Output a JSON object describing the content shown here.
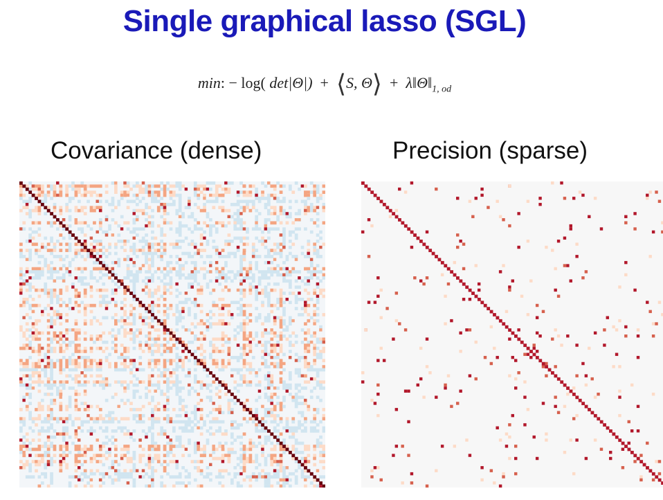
{
  "title": "Single graphical lasso (SGL)",
  "formula": {
    "min": "min",
    "colon": ":",
    "minus": "−",
    "log": "log(",
    "det": "det",
    "theta_det": "|Θ|)",
    "plus1": "+",
    "inner": "S, Θ",
    "plus2": "+",
    "lambda": "λ",
    "norm": "‖Θ‖",
    "norm_sub": "1, od"
  },
  "panels": {
    "left": {
      "title": "Covariance (dense)"
    },
    "right": {
      "title": "Precision (sparse)"
    }
  },
  "colors": {
    "title": "#1a1ab8",
    "diagonal": "#67000d",
    "strong": "#b2182b",
    "medium": "#d6604d",
    "light": "#f4a582",
    "pale": "#fddbc7",
    "neutral": "#f7f7f7",
    "cool": "#d1e5f0"
  }
}
